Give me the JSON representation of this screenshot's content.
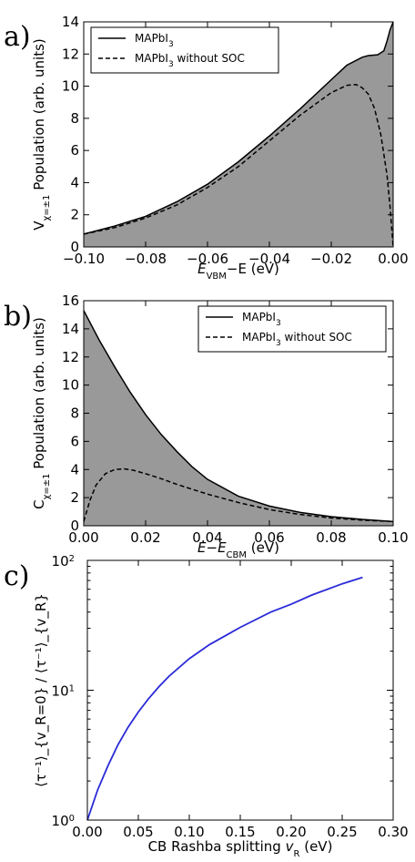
{
  "chart_data": [
    {
      "type": "area",
      "panel_label": "a)",
      "x_label": {
        "pre": "E",
        "sub": "VBM",
        "post": "−E (eV)"
      },
      "y_label": {
        "pre": "V",
        "sub": "χ=±1",
        "post": " Population (arb. units)"
      },
      "xlim": [
        -0.1,
        0.0
      ],
      "ylim": [
        0,
        14
      ],
      "x_ticks": [
        "−0.10",
        "−0.08",
        "−0.06",
        "−0.04",
        "−0.02",
        "0.00"
      ],
      "y_ticks": [
        "0",
        "2",
        "4",
        "6",
        "8",
        "10",
        "12",
        "14"
      ],
      "legend_position": "top-left",
      "fill_color": "#999999",
      "series": [
        {
          "name": {
            "pre": "MAPbI",
            "sub": "3",
            "post": ""
          },
          "style": "solid",
          "filled": true,
          "x": [
            -0.1,
            -0.09,
            -0.08,
            -0.07,
            -0.06,
            -0.05,
            -0.04,
            -0.03,
            -0.02,
            -0.015,
            -0.01,
            -0.008,
            -0.005,
            -0.003,
            -0.002,
            -0.001,
            0.0
          ],
          "y": [
            0.8,
            1.3,
            1.9,
            2.8,
            3.9,
            5.3,
            6.9,
            8.6,
            10.4,
            11.3,
            11.8,
            11.9,
            11.95,
            12.2,
            12.8,
            13.5,
            14.0
          ]
        },
        {
          "name": {
            "pre": "MAPbI",
            "sub": "3",
            "post": " without SOC"
          },
          "style": "dashed",
          "filled": false,
          "x": [
            -0.1,
            -0.09,
            -0.08,
            -0.07,
            -0.06,
            -0.05,
            -0.04,
            -0.03,
            -0.02,
            -0.015,
            -0.012,
            -0.01,
            -0.008,
            -0.006,
            -0.004,
            -0.002,
            -0.001,
            0.0
          ],
          "y": [
            0.8,
            1.2,
            1.8,
            2.6,
            3.7,
            5.0,
            6.6,
            8.2,
            9.6,
            10.05,
            10.1,
            9.9,
            9.5,
            8.6,
            7.0,
            4.5,
            2.5,
            0.0
          ]
        }
      ]
    },
    {
      "type": "area",
      "panel_label": "b)",
      "x_label": {
        "pre": "E−E",
        "sub": "CBM",
        "post": " (eV)"
      },
      "y_label": {
        "pre": "C",
        "sub": "χ=±1",
        "post": " Population (arb. units)"
      },
      "xlim": [
        0.0,
        0.1
      ],
      "ylim": [
        0,
        16
      ],
      "x_ticks": [
        "0.00",
        "0.02",
        "0.04",
        "0.06",
        "0.08",
        "0.10"
      ],
      "y_ticks": [
        "0",
        "2",
        "4",
        "6",
        "8",
        "10",
        "12",
        "14",
        "16"
      ],
      "legend_position": "top-right",
      "fill_color": "#999999",
      "series": [
        {
          "name": {
            "pre": "MAPbI",
            "sub": "3",
            "post": ""
          },
          "style": "solid",
          "filled": true,
          "x": [
            0.0,
            0.005,
            0.01,
            0.015,
            0.02,
            0.025,
            0.03,
            0.035,
            0.04,
            0.05,
            0.06,
            0.07,
            0.08,
            0.09,
            0.1
          ],
          "y": [
            15.3,
            13.2,
            11.3,
            9.5,
            7.9,
            6.5,
            5.3,
            4.2,
            3.3,
            2.1,
            1.4,
            0.95,
            0.65,
            0.45,
            0.3
          ]
        },
        {
          "name": {
            "pre": "MAPbI",
            "sub": "3",
            "post": " without SOC"
          },
          "style": "dashed",
          "filled": false,
          "x": [
            0.0,
            0.002,
            0.004,
            0.007,
            0.01,
            0.013,
            0.016,
            0.02,
            0.025,
            0.03,
            0.035,
            0.04,
            0.05,
            0.06,
            0.07,
            0.08,
            0.09,
            0.1
          ],
          "y": [
            0.3,
            1.8,
            2.9,
            3.7,
            4.0,
            4.05,
            3.95,
            3.7,
            3.35,
            2.95,
            2.6,
            2.25,
            1.65,
            1.15,
            0.8,
            0.55,
            0.4,
            0.3
          ]
        }
      ]
    },
    {
      "type": "line",
      "panel_label": "c)",
      "x_label": {
        "pre": "CB Rashba splitting ",
        "var": "v",
        "sub": "R",
        "post": " (eV)"
      },
      "y_label": {
        "text": "⟨τ⁻¹⟩_{v_R=0} / ⟨τ⁻¹⟩_{v_R}"
      },
      "xlim": [
        0.0,
        0.3
      ],
      "ylim": [
        1,
        100
      ],
      "y_scale": "log",
      "x_ticks": [
        "0.00",
        "0.05",
        "0.10",
        "0.15",
        "0.20",
        "0.25",
        "0.30"
      ],
      "y_ticks": [
        {
          "base": "10",
          "exp": "0"
        },
        {
          "base": "10",
          "exp": "1"
        },
        {
          "base": "10",
          "exp": "2"
        }
      ],
      "line_color": "#2a2ad8",
      "series": [
        {
          "x": [
            0.0,
            0.01,
            0.02,
            0.03,
            0.04,
            0.05,
            0.06,
            0.07,
            0.08,
            0.1,
            0.12,
            0.15,
            0.18,
            0.2,
            0.22,
            0.25,
            0.27
          ],
          "y": [
            1.0,
            1.7,
            2.6,
            3.8,
            5.2,
            6.8,
            8.6,
            10.6,
            12.8,
            17.5,
            22.5,
            30.5,
            40.0,
            46.0,
            54.0,
            66.0,
            74.0
          ]
        }
      ]
    }
  ]
}
